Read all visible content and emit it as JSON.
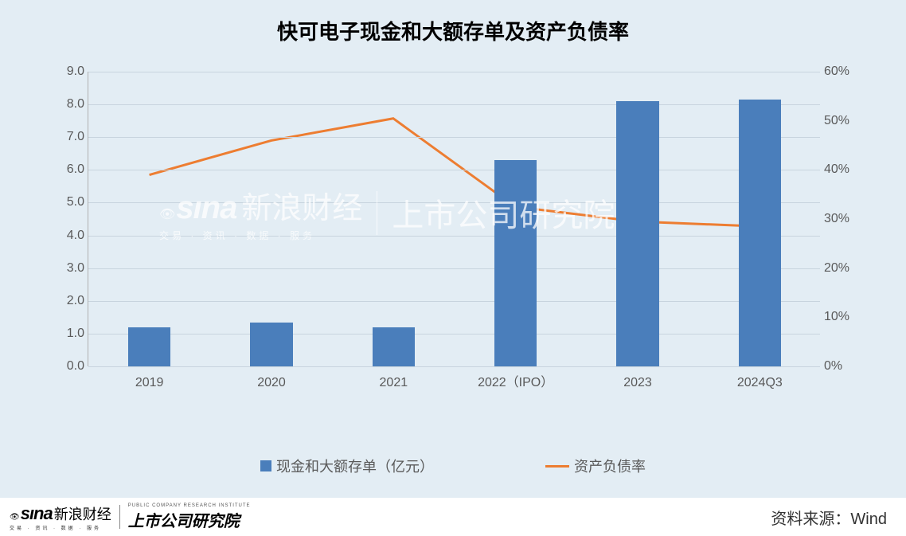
{
  "chart": {
    "type": "bar+line",
    "title": "快可电子现金和大额存单及资产负债率",
    "title_fontsize": 26,
    "title_color": "#000000",
    "background_color": "#e3edf4",
    "plot_background": "#e3edf4",
    "grid_color": "#c8d4de",
    "axis_text_color": "#595959",
    "axis_fontsize": 16,
    "categories": [
      "2019",
      "2020",
      "2021",
      "2022（IPO）",
      "2023",
      "2024Q3"
    ],
    "bars": {
      "label": "现金和大额存单（亿元）",
      "values": [
        1.2,
        1.35,
        1.2,
        6.3,
        8.1,
        8.15
      ],
      "color": "#4a7ebb",
      "width_ratio": 0.35
    },
    "line": {
      "label": "资产负债率",
      "values": [
        0.39,
        0.46,
        0.505,
        0.325,
        0.295,
        0.285
      ],
      "color": "#ed7d31",
      "width": 3
    },
    "y_left": {
      "min": 0.0,
      "max": 9.0,
      "step": 1.0,
      "ticks": [
        "0.0",
        "1.0",
        "2.0",
        "3.0",
        "4.0",
        "5.0",
        "6.0",
        "7.0",
        "8.0",
        "9.0"
      ]
    },
    "y_right": {
      "min": 0.0,
      "max": 0.6,
      "step": 0.1,
      "ticks": [
        "0%",
        "10%",
        "20%",
        "30%",
        "40%",
        "50%",
        "60%"
      ]
    },
    "legend": {
      "bar_label": "现金和大额存单（亿元）",
      "line_label": "资产负债率"
    }
  },
  "watermark": {
    "sina": "sına",
    "sina_cn": "新浪财经",
    "sina_sub": "交易 · 资讯 · 数据 · 服务",
    "institute": "上市公司研究院"
  },
  "footer": {
    "sina": "sına",
    "sina_cn": "新浪财经",
    "sina_sub": "交易 · 资讯 · 数据 · 服务",
    "inst_en": "PUBLIC COMPANY RESEARCH INSTITUTE",
    "inst_cn": "上市公司研究院",
    "source": "资料来源：Wind"
  }
}
